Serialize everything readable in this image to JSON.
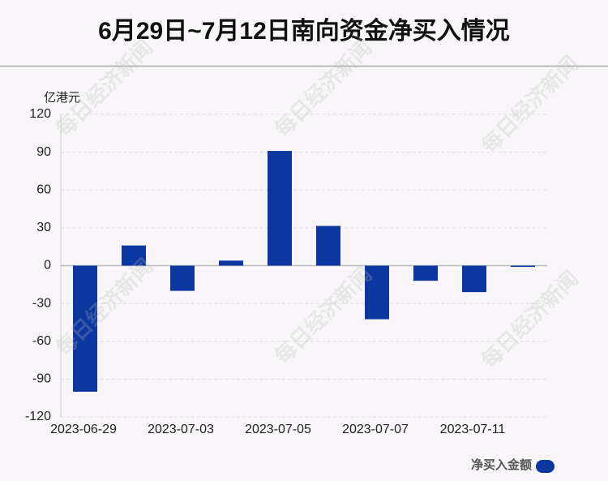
{
  "chart_data": {
    "type": "bar",
    "title": "6月29日~7月12日南向资金净买入情况",
    "y_axis_label": "亿港元",
    "watermark": "每日经济新闻",
    "categories": [
      "2023-06-29",
      null,
      "2023-07-03",
      null,
      "2023-07-05",
      null,
      "2023-07-07",
      null,
      "2023-07-11",
      null
    ],
    "series": [
      {
        "name": "净买入金额",
        "color": "#0d37a0",
        "values": [
          -100,
          16,
          -20,
          4,
          91,
          31.5,
          -42.5,
          -12,
          -21,
          -1
        ]
      }
    ],
    "ylim": [
      -120,
      120
    ],
    "yticks": [
      -120,
      -90,
      -60,
      -30,
      0,
      30,
      60,
      90,
      120
    ],
    "grid": true,
    "legend": "bottom-right"
  }
}
